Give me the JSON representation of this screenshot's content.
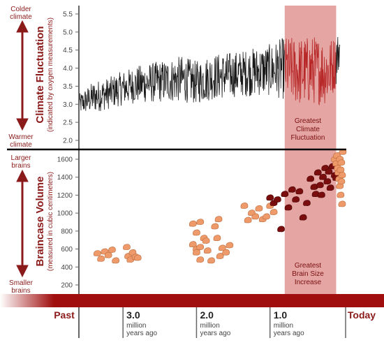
{
  "colors": {
    "dark_red": "#8b1a1a",
    "bar_red": "#a00e0e",
    "band_pink": "#e4a5a3",
    "line_black": "#1a1a1a",
    "line_red": "#b82828",
    "skull_orange": "#ef9a6a",
    "skull_dark": "#7a0e0e"
  },
  "labels": {
    "colder_line1": "Colder",
    "colder_line2": "climate",
    "warmer_line1": "Warmer",
    "warmer_line2": "climate",
    "larger_line1": "Larger",
    "larger_line2": "brains",
    "smaller_line1": "Smaller",
    "smaller_line2": "brains",
    "climate_title": "Climate Fluctuation",
    "climate_subtitle": "(indicated by oxygen measurements)",
    "brain_title": "Braincase Volume",
    "brain_subtitle": "(measured in cubic centimeters)",
    "greatest_climate": [
      "Greatest",
      "Climate",
      "Fluctuation"
    ],
    "greatest_brain": [
      "Greatest",
      "Brain Size",
      "Increase"
    ]
  },
  "timeline": {
    "past": "Past",
    "today": "Today",
    "ticks": [
      {
        "value": "3.0",
        "line1": "million",
        "line2": "years ago"
      },
      {
        "value": "2.0",
        "line1": "million",
        "line2": "years ago"
      },
      {
        "value": "1.0",
        "line1": "million",
        "line2": "years ago"
      }
    ]
  },
  "chart_data": [
    {
      "type": "line",
      "ylabel": "Climate Fluctuation",
      "ylim": [
        1.8,
        5.6
      ],
      "y_ticks": [
        "5.5",
        "5.0",
        "4.5",
        "4.0",
        "3.5",
        "3.0",
        "2.5",
        "2.0"
      ],
      "x_unit": "million years ago",
      "xlim": [
        3.6,
        0
      ],
      "highlight_range": [
        0.8,
        0.1
      ],
      "highlight_label": "Greatest Climate Fluctuation",
      "x": [
        3.6,
        3.4,
        3.2,
        3.0,
        2.8,
        2.6,
        2.4,
        2.2,
        2.0,
        1.8,
        1.6,
        1.4,
        1.2,
        1.0,
        0.8,
        0.6,
        0.4,
        0.2,
        0.1,
        0.05
      ],
      "y_mean": [
        3.0,
        3.2,
        3.3,
        3.45,
        3.55,
        3.6,
        3.65,
        3.7,
        3.6,
        3.75,
        3.8,
        3.85,
        3.9,
        3.95,
        4.0,
        3.9,
        3.95,
        3.9,
        4.2,
        4.6
      ],
      "y_range": [
        0.35,
        0.55,
        0.55,
        0.6,
        0.65,
        0.7,
        0.75,
        0.8,
        0.75,
        0.8,
        0.8,
        0.8,
        0.85,
        0.9,
        1.1,
        1.2,
        1.2,
        1.15,
        0.9,
        0.6
      ]
    },
    {
      "type": "scatter",
      "ylabel": "Braincase Volume",
      "ylim": [
        100,
        1700
      ],
      "y_ticks": [
        "1600",
        "1400",
        "1200",
        "1000",
        "800",
        "600",
        "400",
        "200"
      ],
      "x_unit": "million years ago",
      "xlim": [
        3.6,
        0
      ],
      "highlight_range": [
        0.8,
        0.1
      ],
      "highlight_label": "Greatest Brain Size Increase",
      "series": [
        {
          "values": [
            [
              3.35,
              550
            ],
            [
              3.3,
              490
            ],
            [
              3.25,
              570
            ],
            [
              3.2,
              530
            ],
            [
              3.15,
              590
            ],
            [
              3.1,
              470
            ],
            [
              2.95,
              620
            ],
            [
              2.93,
              520
            ],
            [
              2.9,
              480
            ],
            [
              2.87,
              560
            ],
            [
              2.83,
              510
            ],
            [
              2.8,
              500
            ],
            [
              2.05,
              880
            ],
            [
              2.0,
              780
            ],
            [
              1.95,
              900
            ],
            [
              2.05,
              650
            ],
            [
              2.0,
              600
            ],
            [
              1.95,
              620
            ],
            [
              2.0,
              560
            ],
            [
              1.95,
              480
            ],
            [
              1.9,
              720
            ],
            [
              1.87,
              690
            ],
            [
              1.85,
              580
            ],
            [
              1.8,
              470
            ],
            [
              1.75,
              850
            ],
            [
              1.72,
              720
            ],
            [
              1.7,
              930
            ],
            [
              1.68,
              520
            ],
            [
              1.65,
              610
            ],
            [
              1.6,
              560
            ],
            [
              1.55,
              640
            ],
            [
              1.35,
              1080
            ],
            [
              1.3,
              920
            ],
            [
              1.25,
              1000
            ],
            [
              1.2,
              960
            ],
            [
              1.15,
              1050
            ],
            [
              1.1,
              930
            ],
            [
              1.05,
              960
            ],
            [
              1.0,
              1080
            ],
            [
              0.95,
              1010
            ]
          ]
        },
        {
          "values": [
            [
              1.0,
              1170
            ],
            [
              0.95,
              1110
            ],
            [
              0.9,
              1150
            ],
            [
              0.85,
              820
            ],
            [
              0.8,
              1210
            ],
            [
              0.75,
              1060
            ],
            [
              0.7,
              1260
            ],
            [
              0.65,
              1150
            ],
            [
              0.6,
              1240
            ],
            [
              0.55,
              950
            ],
            [
              0.5,
              1110
            ],
            [
              0.45,
              1380
            ],
            [
              0.4,
              1290
            ],
            [
              0.38,
              1210
            ],
            [
              0.35,
              1450
            ],
            [
              0.32,
              1310
            ],
            [
              0.3,
              1200
            ],
            [
              0.28,
              1400
            ],
            [
              0.25,
              1500
            ],
            [
              0.22,
              1350
            ],
            [
              0.2,
              1460
            ],
            [
              0.18,
              1280
            ],
            [
              0.15,
              1520
            ],
            [
              0.12,
              1420
            ],
            [
              0.1,
              1390
            ]
          ]
        },
        {
          "values": [
            [
              0.12,
              1600
            ],
            [
              0.1,
              1550
            ],
            [
              0.09,
              1640
            ],
            [
              0.08,
              1500
            ],
            [
              0.07,
              1450
            ],
            [
              0.06,
              1380
            ],
            [
              0.05,
              1600
            ],
            [
              0.05,
              1300
            ],
            [
              0.04,
              1480
            ],
            [
              0.04,
              1200
            ],
            [
              0.03,
              1560
            ],
            [
              0.03,
              1350
            ],
            [
              0.02,
              1420
            ],
            [
              0.02,
              1100
            ],
            [
              0.01,
              1680
            ]
          ]
        }
      ]
    }
  ]
}
